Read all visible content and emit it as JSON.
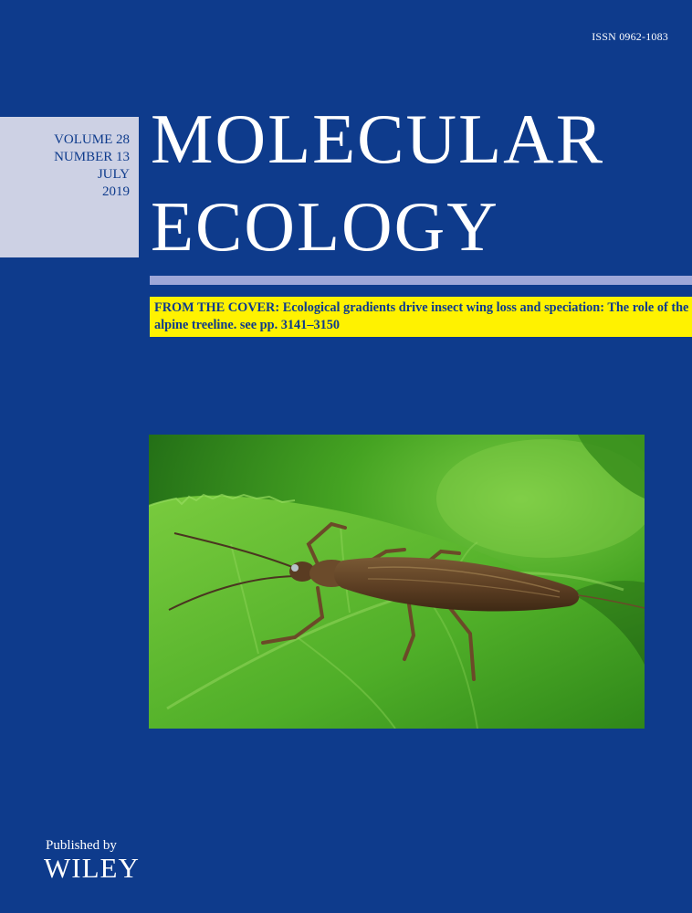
{
  "issn": "ISSN 0962-1083",
  "issue": {
    "volume": "VOLUME 28",
    "number": "NUMBER 13",
    "month": "JULY",
    "year": "2019"
  },
  "title": {
    "line1": "MOLECULAR",
    "line2": "ECOLOGY"
  },
  "from_the_cover": {
    "label": "FROM THE COVER:",
    "text": "Ecological gradients drive insect wing loss and speciation: The role of the alpine treeline. see pp. 3141–3150"
  },
  "publisher": {
    "label": "Published by",
    "name": "WILEY"
  },
  "colors": {
    "background": "#0e3b8c",
    "issue_box": "#cdd1e4",
    "rule": "#9ea7d8",
    "banner": "#fff200"
  },
  "cover_image": {
    "description": "stonefly-on-leaf-photo"
  }
}
